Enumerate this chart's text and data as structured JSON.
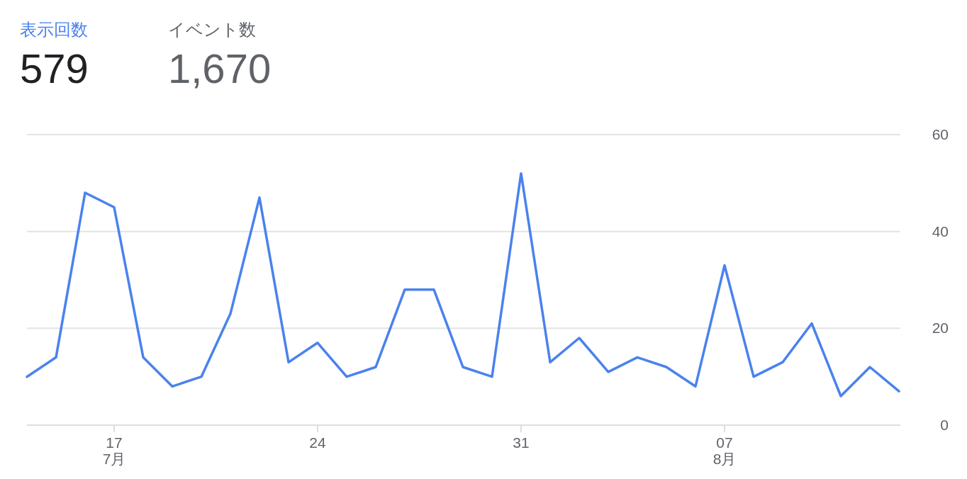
{
  "chart_data": {
    "type": "line",
    "x": [
      "--07-14",
      "--07-15",
      "--07-16",
      "--07-17",
      "--07-18",
      "--07-19",
      "--07-20",
      "--07-21",
      "--07-22",
      "--07-23",
      "--07-24",
      "--07-25",
      "--07-26",
      "--07-27",
      "--07-28",
      "--07-29",
      "--07-30",
      "--07-31",
      "--08-01",
      "--08-02",
      "--08-03",
      "--08-04",
      "--08-05",
      "--08-06",
      "--08-07",
      "--08-08",
      "--08-09",
      "--08-10",
      "--08-11",
      "--08-12",
      "--08-13"
    ],
    "series": [
      {
        "name": "表示回数",
        "color": "#4a82ee",
        "values": [
          10,
          14,
          48,
          45,
          14,
          8,
          10,
          23,
          47,
          13,
          17,
          10,
          12,
          28,
          28,
          12,
          10,
          52,
          13,
          18,
          11,
          14,
          12,
          8,
          33,
          10,
          13,
          21,
          6,
          12,
          7
        ]
      }
    ],
    "xlim": [
      "--07-14",
      "--08-13"
    ],
    "xticks": [
      {
        "value": "--07-17",
        "label": "17\n7月"
      },
      {
        "value": "--07-24",
        "label": "24"
      },
      {
        "value": "--07-31",
        "label": "31"
      },
      {
        "value": "--08-07",
        "label": "07\n8月"
      }
    ],
    "ylim": [
      0,
      60
    ],
    "yticks": [
      0,
      20,
      40,
      60
    ],
    "grid": "y",
    "legend": "top left",
    "annotations": [
      "579",
      "イベント数",
      "1,670"
    ]
  }
}
